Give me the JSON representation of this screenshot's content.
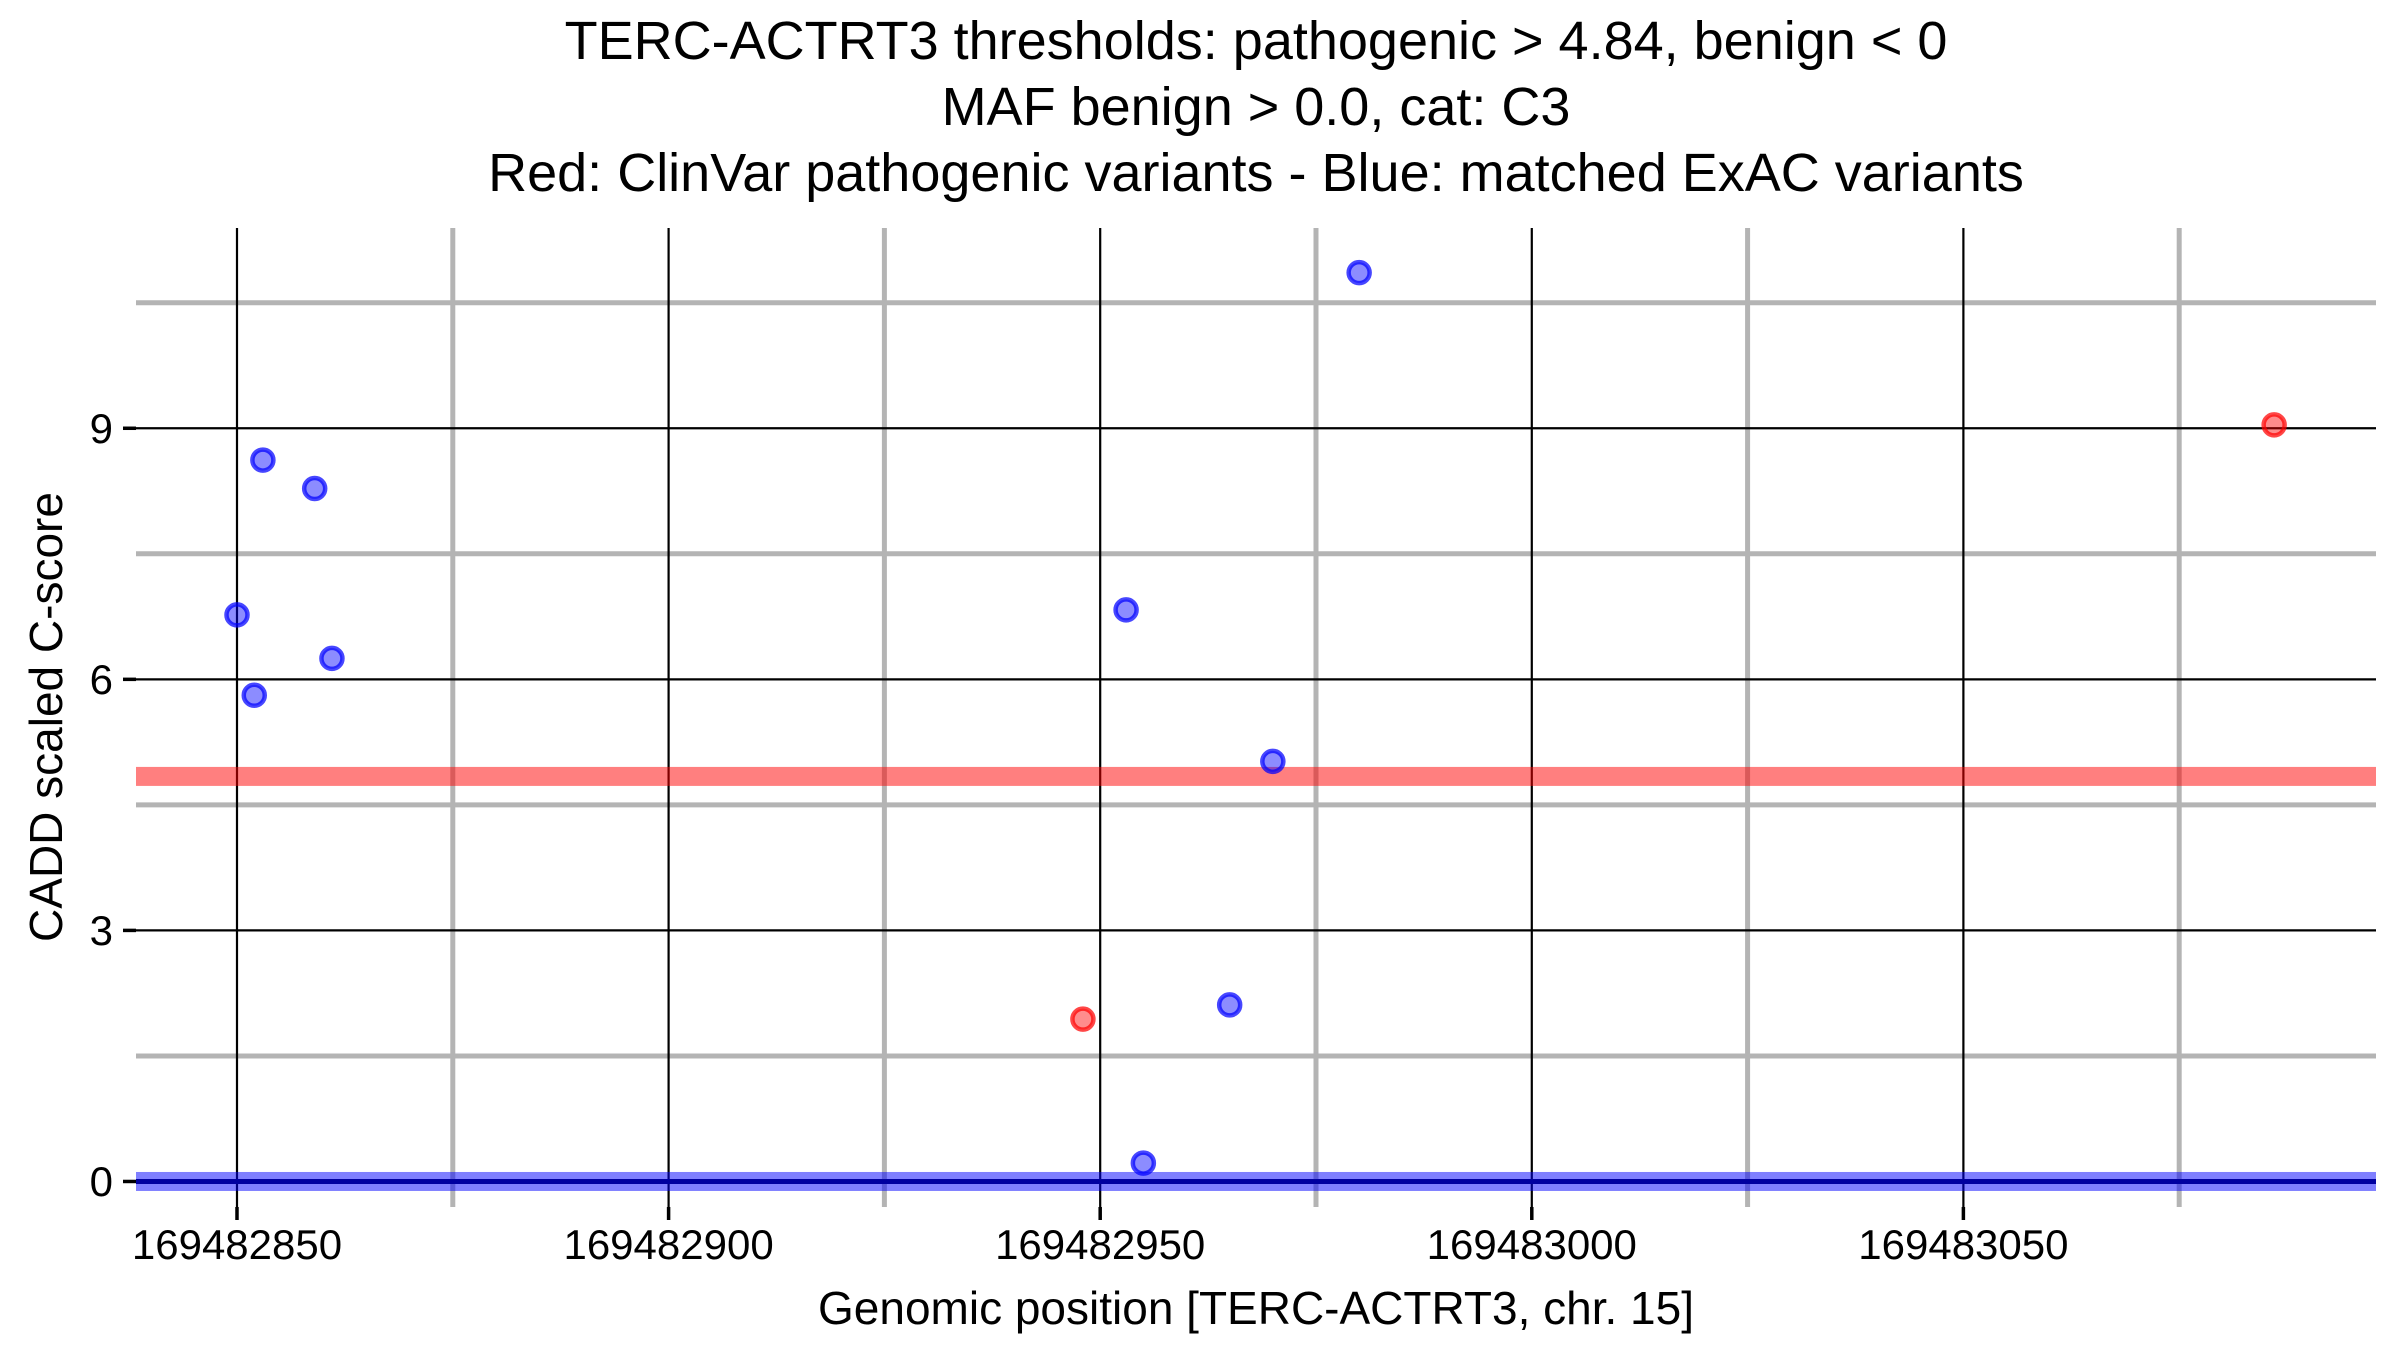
{
  "figure": {
    "background": "#ffffff",
    "title_lines": [
      "TERC-ACTRT3 thresholds: pathogenic > 4.84, benign < 0",
      "MAF benign > 0.0, cat: C3",
      "Red: ClinVar pathogenic variants - Blue: matched ExAC variants"
    ]
  },
  "chart_data": {
    "type": "scatter",
    "title": "TERC-ACTRT3 thresholds: pathogenic > 4.84, benign < 0 | MAF benign > 0.0, cat: C3 | Red: ClinVar pathogenic variants - Blue: matched ExAC variants",
    "xlabel": "Genomic position [TERC-ACTRT3, chr. 15]",
    "ylabel": "CADD scaled C-score",
    "x_ticks": [
      169482850,
      169482900,
      169482950,
      169483000,
      169483050
    ],
    "y_ticks": [
      0,
      3,
      6,
      9
    ],
    "xlim": [
      169482838.3,
      169483097.8
    ],
    "ylim": [
      -0.305,
      11.393
    ],
    "grid": {
      "show_major": true,
      "show_minor": true,
      "major_color": "#000000",
      "major_width": 2.2,
      "minor_color": "#b4b4b4",
      "minor_width": 5
    },
    "axis": {
      "tick_color": "#000000",
      "tick_length": 13,
      "tick_width": 3.5,
      "label_color": "#000000"
    },
    "thresholds": [
      {
        "name": "pathogenic-threshold",
        "value": 4.84,
        "color": "#ff0000",
        "band_opacity": 0.5,
        "band_height": 19,
        "core_line": false,
        "core_color": "#a00000"
      },
      {
        "name": "benign-threshold",
        "value": 0,
        "color": "#0000ff",
        "band_opacity": 0.5,
        "band_height": 19,
        "core_line": true,
        "core_color": "#0000a0"
      }
    ],
    "point_style": {
      "radius": 10.5,
      "stroke_width": 4.5,
      "fill_opacity": 0.45,
      "stroke_opacity": 0.72
    },
    "series": [
      {
        "name": "ClinVar pathogenic variants",
        "color": "#ff0000",
        "points": [
          [
            169482948,
            1.94
          ],
          [
            169483086,
            9.04
          ]
        ]
      },
      {
        "name": "matched ExAC variants",
        "color": "#0000ff",
        "points": [
          [
            169482850,
            6.77
          ],
          [
            169482852,
            5.81
          ],
          [
            169482853,
            8.62
          ],
          [
            169482859,
            8.28
          ],
          [
            169482861,
            6.25
          ],
          [
            169482953,
            6.83
          ],
          [
            169482955,
            0.22
          ],
          [
            169482965,
            2.11
          ],
          [
            169482970,
            5.02
          ],
          [
            169482980,
            10.86
          ]
        ]
      }
    ],
    "legend": {
      "position": "none"
    }
  }
}
